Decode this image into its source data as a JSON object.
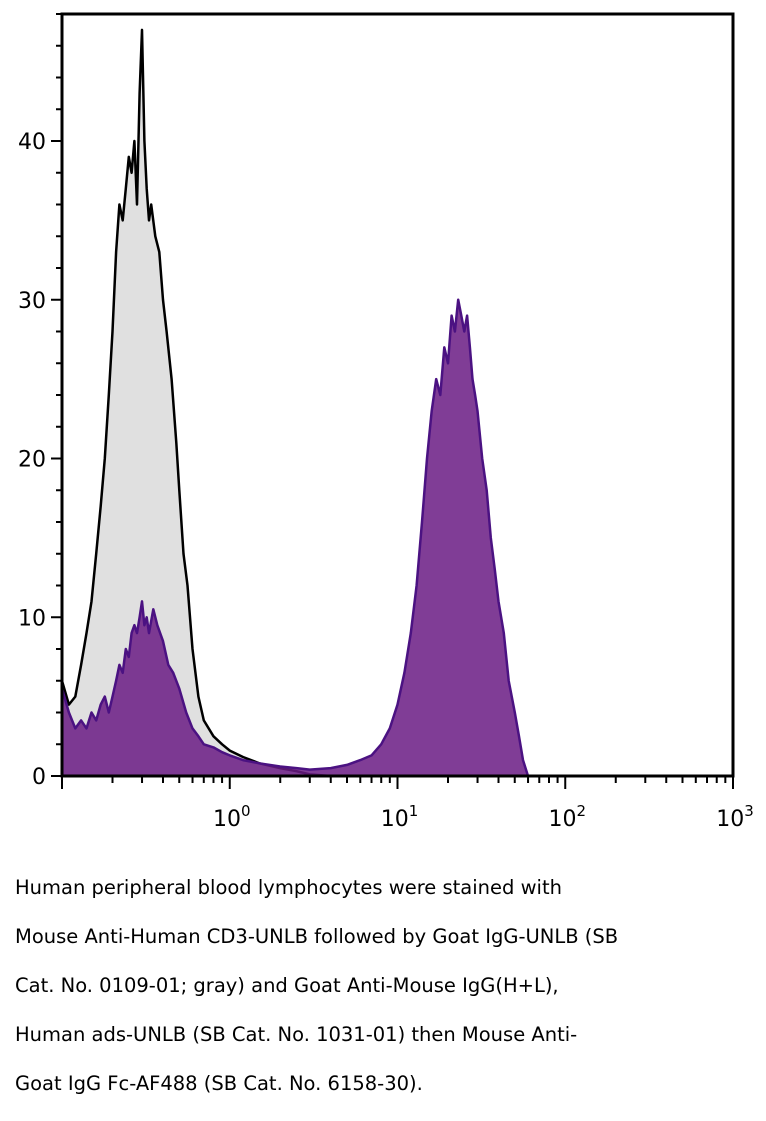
{
  "chart_data": {
    "type": "area",
    "title": "",
    "xlabel": "",
    "ylabel": "",
    "x_scale": "log",
    "xlim": [
      0.1,
      1000
    ],
    "ylim": [
      0,
      48
    ],
    "grid": false,
    "legend": "none",
    "x_ticks": [
      {
        "value": 1,
        "base": "10",
        "exp": "0"
      },
      {
        "value": 10,
        "base": "10",
        "exp": "1"
      },
      {
        "value": 100,
        "base": "10",
        "exp": "2"
      },
      {
        "value": 1000,
        "base": "10",
        "exp": "3"
      }
    ],
    "y_ticks": [
      {
        "value": 0,
        "label": "0"
      },
      {
        "value": 10,
        "label": "10"
      },
      {
        "value": 20,
        "label": "20"
      },
      {
        "value": 30,
        "label": "30"
      },
      {
        "value": 40,
        "label": "40"
      }
    ],
    "series": [
      {
        "fill": "#e0e0e0",
        "stroke": "#000000",
        "points": [
          [
            0.1,
            6
          ],
          [
            0.11,
            4.5
          ],
          [
            0.12,
            5
          ],
          [
            0.13,
            7
          ],
          [
            0.14,
            9
          ],
          [
            0.15,
            11
          ],
          [
            0.16,
            14
          ],
          [
            0.17,
            17
          ],
          [
            0.18,
            20
          ],
          [
            0.19,
            24
          ],
          [
            0.2,
            28
          ],
          [
            0.21,
            33
          ],
          [
            0.22,
            36
          ],
          [
            0.23,
            35
          ],
          [
            0.24,
            37
          ],
          [
            0.25,
            39
          ],
          [
            0.26,
            38
          ],
          [
            0.27,
            40
          ],
          [
            0.28,
            36
          ],
          [
            0.29,
            43
          ],
          [
            0.3,
            47
          ],
          [
            0.31,
            40
          ],
          [
            0.32,
            37
          ],
          [
            0.33,
            35
          ],
          [
            0.34,
            36
          ],
          [
            0.36,
            34
          ],
          [
            0.38,
            33
          ],
          [
            0.4,
            30
          ],
          [
            0.42,
            28
          ],
          [
            0.45,
            25
          ],
          [
            0.48,
            21
          ],
          [
            0.5,
            18
          ],
          [
            0.53,
            14
          ],
          [
            0.56,
            12
          ],
          [
            0.6,
            8
          ],
          [
            0.65,
            5
          ],
          [
            0.7,
            3.5
          ],
          [
            0.8,
            2.5
          ],
          [
            0.9,
            2
          ],
          [
            1.0,
            1.6
          ],
          [
            1.2,
            1.2
          ],
          [
            1.5,
            0.8
          ],
          [
            2.0,
            0.5
          ],
          [
            2.5,
            0.3
          ],
          [
            3.0,
            0.1
          ],
          [
            4.0,
            0
          ]
        ]
      },
      {
        "fill": "#6a1b84",
        "stroke": "#4b1282",
        "points": [
          [
            0.1,
            5.5
          ],
          [
            0.11,
            4
          ],
          [
            0.12,
            3
          ],
          [
            0.13,
            3.5
          ],
          [
            0.14,
            3
          ],
          [
            0.15,
            4
          ],
          [
            0.16,
            3.5
          ],
          [
            0.17,
            4.5
          ],
          [
            0.18,
            5
          ],
          [
            0.19,
            4
          ],
          [
            0.2,
            5
          ],
          [
            0.21,
            6
          ],
          [
            0.22,
            7
          ],
          [
            0.23,
            6.5
          ],
          [
            0.24,
            8
          ],
          [
            0.25,
            7.5
          ],
          [
            0.26,
            9
          ],
          [
            0.27,
            9.5
          ],
          [
            0.28,
            9
          ],
          [
            0.29,
            10
          ],
          [
            0.3,
            11
          ],
          [
            0.31,
            9.5
          ],
          [
            0.32,
            10
          ],
          [
            0.33,
            9
          ],
          [
            0.35,
            10.5
          ],
          [
            0.37,
            9.5
          ],
          [
            0.4,
            8.5
          ],
          [
            0.43,
            7
          ],
          [
            0.46,
            6.5
          ],
          [
            0.5,
            5.5
          ],
          [
            0.55,
            4
          ],
          [
            0.6,
            3
          ],
          [
            0.65,
            2.5
          ],
          [
            0.7,
            2
          ],
          [
            0.8,
            1.8
          ],
          [
            0.9,
            1.5
          ],
          [
            1.0,
            1.3
          ],
          [
            1.2,
            1
          ],
          [
            1.5,
            0.8
          ],
          [
            2.0,
            0.6
          ],
          [
            2.5,
            0.5
          ],
          [
            3.0,
            0.4
          ],
          [
            4.0,
            0.5
          ],
          [
            5.0,
            0.7
          ],
          [
            6.0,
            1.0
          ],
          [
            7.0,
            1.3
          ],
          [
            8.0,
            2.0
          ],
          [
            9.0,
            3.0
          ],
          [
            10,
            4.5
          ],
          [
            11,
            6.5
          ],
          [
            12,
            9
          ],
          [
            13,
            12
          ],
          [
            14,
            16
          ],
          [
            15,
            20
          ],
          [
            16,
            23
          ],
          [
            17,
            25
          ],
          [
            18,
            24
          ],
          [
            19,
            27
          ],
          [
            20,
            26
          ],
          [
            21,
            29
          ],
          [
            22,
            28
          ],
          [
            23,
            30
          ],
          [
            24,
            29
          ],
          [
            25,
            28
          ],
          [
            26,
            29
          ],
          [
            27,
            27
          ],
          [
            28,
            25
          ],
          [
            29,
            24
          ],
          [
            30,
            23
          ],
          [
            32,
            20
          ],
          [
            34,
            18
          ],
          [
            36,
            15
          ],
          [
            38,
            13
          ],
          [
            40,
            11
          ],
          [
            43,
            9
          ],
          [
            46,
            6
          ],
          [
            50,
            4
          ],
          [
            53,
            2.5
          ],
          [
            56,
            1
          ],
          [
            60,
            0
          ]
        ]
      }
    ]
  },
  "caption": {
    "lines": [
      "Human peripheral blood lymphocytes were stained with",
      "Mouse Anti-Human CD3-UNLB followed by Goat IgG-UNLB (SB",
      "Cat. No. 0109-01; gray) and Goat Anti-Mouse IgG(H+L),",
      "Human ads-UNLB (SB Cat. No. 1031-01) then Mouse Anti-",
      "Goat IgG Fc-AF488 (SB Cat. No. 6158-30)."
    ]
  }
}
